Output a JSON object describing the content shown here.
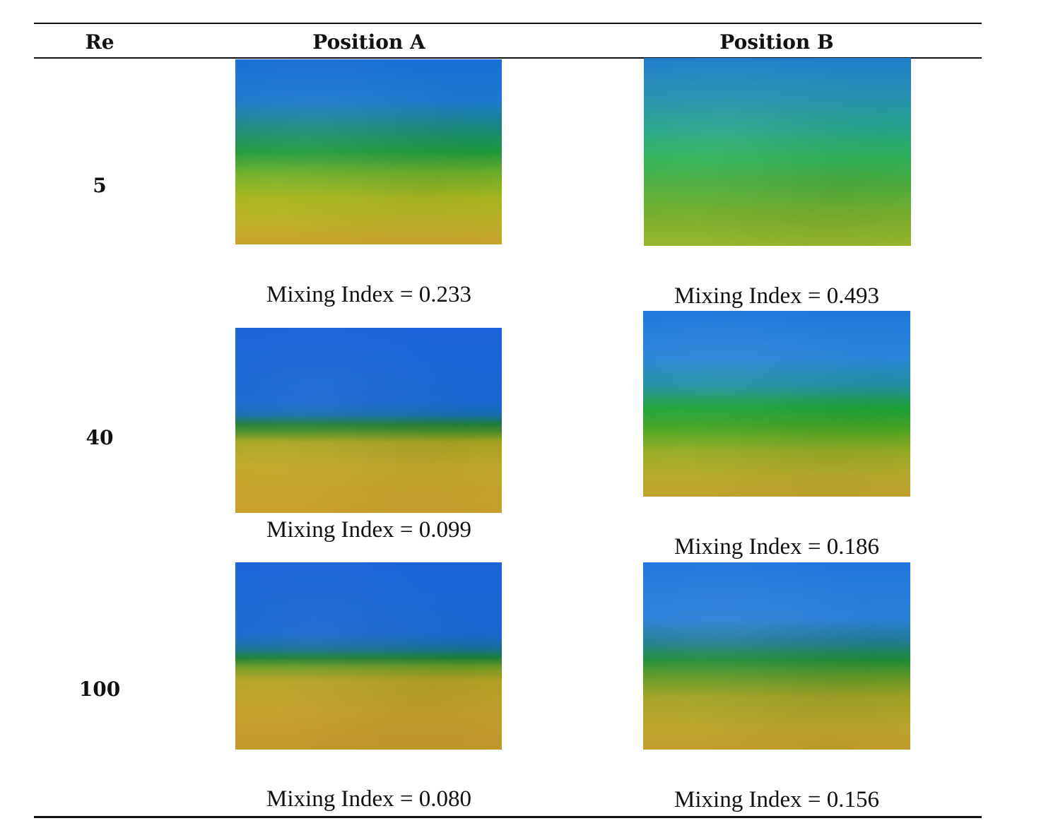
{
  "table": {
    "headers": {
      "re": "Re",
      "position_a": "Position A",
      "position_b": "Position B"
    },
    "rows": [
      {
        "re": "5",
        "position_a_caption": "Mixing Index = 0.233",
        "position_b_caption": "Mixing Index = 0.493"
      },
      {
        "re": "40",
        "position_a_caption": "Mixing Index = 0.099",
        "position_b_caption": "Mixing Index = 0.186"
      },
      {
        "re": "100",
        "position_a_caption": "Mixing Index = 0.080",
        "position_b_caption": "Mixing Index = 0.156"
      }
    ]
  },
  "colors": {
    "blue": "#1a6fd6",
    "green": "#1f9a3c",
    "yellow": "#c4a92b"
  }
}
